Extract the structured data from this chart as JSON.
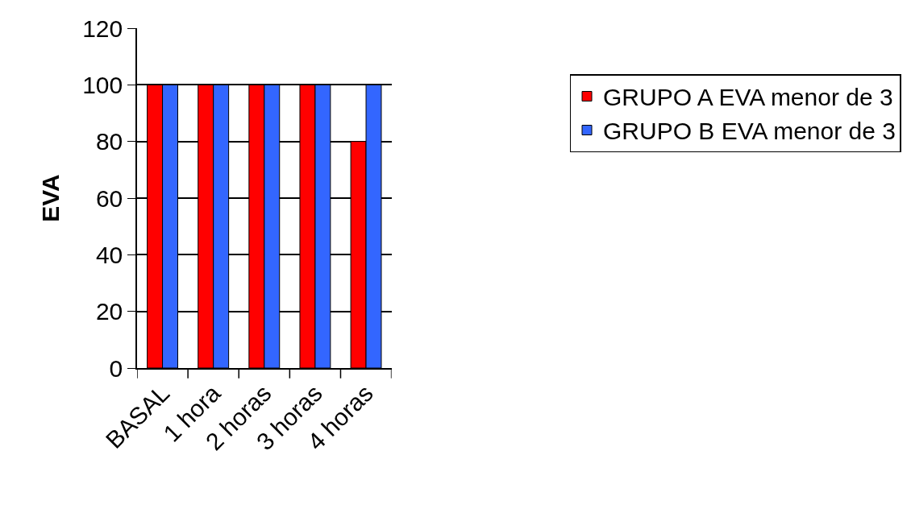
{
  "chart_data": {
    "type": "bar",
    "ylabel": "EVA",
    "categories": [
      "BASAL",
      "1 hora",
      "2 horas",
      "3 horas",
      "4 horas"
    ],
    "series": [
      {
        "name": "GRUPO A EVA menor de 3",
        "color": "#ff0000",
        "values": [
          100,
          100,
          100,
          100,
          80
        ]
      },
      {
        "name": "GRUPO B EVA menor de 3",
        "color": "#3366ff",
        "values": [
          100,
          100,
          100,
          100,
          100
        ]
      }
    ],
    "ylim": [
      0,
      120
    ],
    "yticks": [
      0,
      20,
      40,
      60,
      80,
      100,
      120
    ],
    "grid": "y",
    "legend": "right"
  }
}
